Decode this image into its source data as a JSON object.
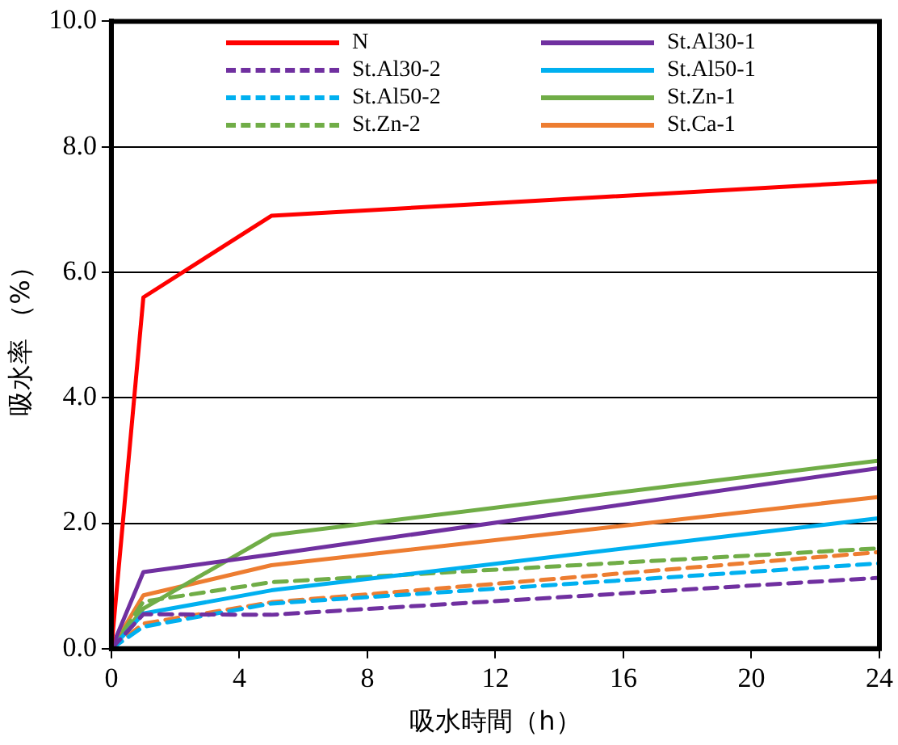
{
  "chart_data": {
    "type": "line",
    "xlabel": "吸水時間（h）",
    "ylabel": "吸水率 （%）",
    "x": [
      0,
      1,
      5,
      24
    ],
    "xlim": [
      0,
      24
    ],
    "xticks": [
      0,
      4,
      8,
      12,
      16,
      20,
      24
    ],
    "ylim": [
      0,
      10
    ],
    "yticks": [
      {
        "value": 0,
        "label": "0.0"
      },
      {
        "value": 2,
        "label": "2.0"
      },
      {
        "value": 4,
        "label": "4.0"
      },
      {
        "value": 6,
        "label": "6.0"
      },
      {
        "value": 8,
        "label": "8.0"
      },
      {
        "value": 10,
        "label": "10.0"
      }
    ],
    "grid": "y",
    "legend": "top",
    "marker": "none",
    "series": [
      {
        "name": "N",
        "color": "#ff0000",
        "line_style": "solid",
        "values": [
          0,
          5.6,
          6.9,
          7.45
        ]
      },
      {
        "name": "St.Al30-1",
        "color": "#7030a0",
        "line_style": "solid",
        "values": [
          0,
          1.22,
          1.5,
          2.88
        ]
      },
      {
        "name": "St.Al30-2",
        "color": "#7030a0",
        "line_style": "dashed",
        "values": [
          0,
          0.55,
          0.54,
          1.13
        ]
      },
      {
        "name": "St.Al50-1",
        "color": "#00b0f0",
        "line_style": "solid",
        "values": [
          0,
          0.56,
          0.93,
          2.08
        ]
      },
      {
        "name": "St.Al50-2",
        "color": "#00b0f0",
        "line_style": "dashed",
        "values": [
          0,
          0.35,
          0.72,
          1.36
        ]
      },
      {
        "name": "St.Zn-1",
        "color": "#70ad47",
        "line_style": "solid",
        "values": [
          0,
          0.64,
          1.81,
          3.0
        ]
      },
      {
        "name": "St.Zn-2",
        "color": "#70ad47",
        "line_style": "dashed",
        "values": [
          0,
          0.75,
          1.06,
          1.6
        ]
      },
      {
        "name": "St.Ca-1",
        "color": "#ed7d31",
        "line_style": "solid",
        "values": [
          0,
          0.85,
          1.33,
          2.42
        ]
      },
      {
        "color": "#ed7d31",
        "line_style": "dashed",
        "values": [
          0,
          0.4,
          0.74,
          1.54
        ]
      }
    ]
  }
}
